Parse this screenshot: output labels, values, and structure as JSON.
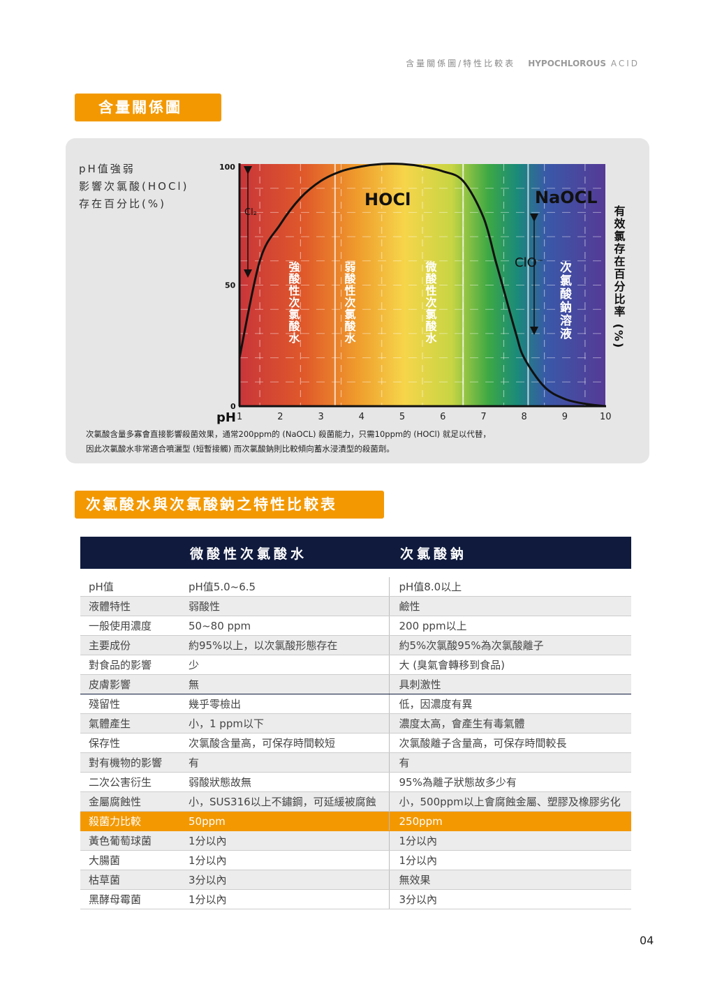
{
  "header": {
    "section": "含量關係圖/特性比較表",
    "brand_bold": "HYPOCHLOROUS",
    "brand_light": "ACID"
  },
  "section1_title": "含量關係圖",
  "panel": {
    "label_lines": [
      "pH值強弱",
      "影響次氯酸(HOCl)",
      "存在百分比(%)"
    ],
    "note_lines": [
      "次氯酸含量多寡會直接影響殺菌效果，通常200ppm的 (NaOCL) 殺菌能力，只需10ppm的 (HOCl) 就足以代替，",
      "因此次氯酸水非常適合噴灑型 (短暫接觸) 而次氯酸鈉則比較傾向蓄水浸漬型的殺菌劑。"
    ]
  },
  "chart_data": {
    "type": "line",
    "xlabel": "pH",
    "ylabel": "有效氯存在百分比率 (%)",
    "x_ticks": [
      "1",
      "2",
      "3",
      "4",
      "5",
      "6",
      "7",
      "8",
      "9",
      "10"
    ],
    "y_ticks": [
      "0",
      "50",
      "100"
    ],
    "xlim": [
      1,
      10
    ],
    "ylim": [
      0,
      100
    ],
    "series": [
      {
        "name": "HOCl",
        "x": [
          1,
          1.5,
          2,
          2.5,
          3,
          3.5,
          4,
          4.5,
          5,
          5.5,
          6,
          6.5,
          7,
          7.3,
          7.5,
          7.8,
          8,
          8.5,
          9,
          9.5,
          10
        ],
        "y": [
          20,
          60,
          75,
          86,
          93,
          97,
          99,
          100,
          100,
          99,
          97,
          93,
          78,
          60,
          48,
          30,
          20,
          8,
          3,
          1,
          0
        ]
      }
    ],
    "annotations": [
      "Cl₂",
      "HOCl",
      "NaOCL",
      "ClO⁻"
    ],
    "zone_labels": [
      "強酸性次氯酸水",
      "弱酸性次氯酸水",
      "微酸性次氯酸水",
      "次氯酸鈉溶液"
    ],
    "gradient_colors": [
      "#c9353a",
      "#e05a2a",
      "#ef9b2c",
      "#f6d54a",
      "#c8d544",
      "#3da844",
      "#1a8a7a",
      "#3a58a8",
      "#553a96"
    ]
  },
  "section2_title": "次氯酸水與次氯酸鈉之特性比較表",
  "table": {
    "columns": [
      "",
      "微酸性次氯酸水",
      "次氯酸鈉"
    ],
    "rows": [
      [
        "pH值",
        "pH值5.0~6.5",
        "pH值8.0以上"
      ],
      [
        "液體特性",
        "弱酸性",
        "鹼性"
      ],
      [
        "一般使用濃度",
        "50~80 ppm",
        "200 ppm以上"
      ],
      [
        "主要成份",
        "約95%以上，以次氯酸形態存在",
        "約5%次氯酸95%為次氯酸離子"
      ],
      [
        "對食品的影響",
        "少",
        "大 (臭氣會轉移到食品)"
      ],
      [
        "皮膚影響",
        "無",
        "具刺激性"
      ],
      [
        "殘留性",
        "幾乎零檢出",
        "低，因濃度有異"
      ],
      [
        "氣體產生",
        "小，1 ppm以下",
        "濃度太高，會產生有毒氣體"
      ],
      [
        "保存性",
        "次氯酸含量高，可保存時間較短",
        "次氯酸離子含量高，可保存時間較長"
      ],
      [
        "對有機物的影響",
        "有",
        "有"
      ],
      [
        "二次公害衍生",
        "弱酸狀態故無",
        "95%為離子狀態故多少有"
      ],
      [
        "金屬腐蝕性",
        "小，SUS316以上不鏽鋼，可延緩被腐蝕",
        "小，500ppm以上會腐蝕金屬、塑膠及橡膠劣化"
      ],
      [
        "殺菌力比較",
        "50ppm",
        "250ppm"
      ],
      [
        "黃色葡萄球菌",
        "1分以內",
        "1分以內"
      ],
      [
        "大腸菌",
        "1分以內",
        "1分以內"
      ],
      [
        "枯草菌",
        "3分以內",
        "無效果"
      ],
      [
        "黑酵母霉菌",
        "1分以內",
        "3分以內"
      ]
    ]
  },
  "page_number": "04"
}
